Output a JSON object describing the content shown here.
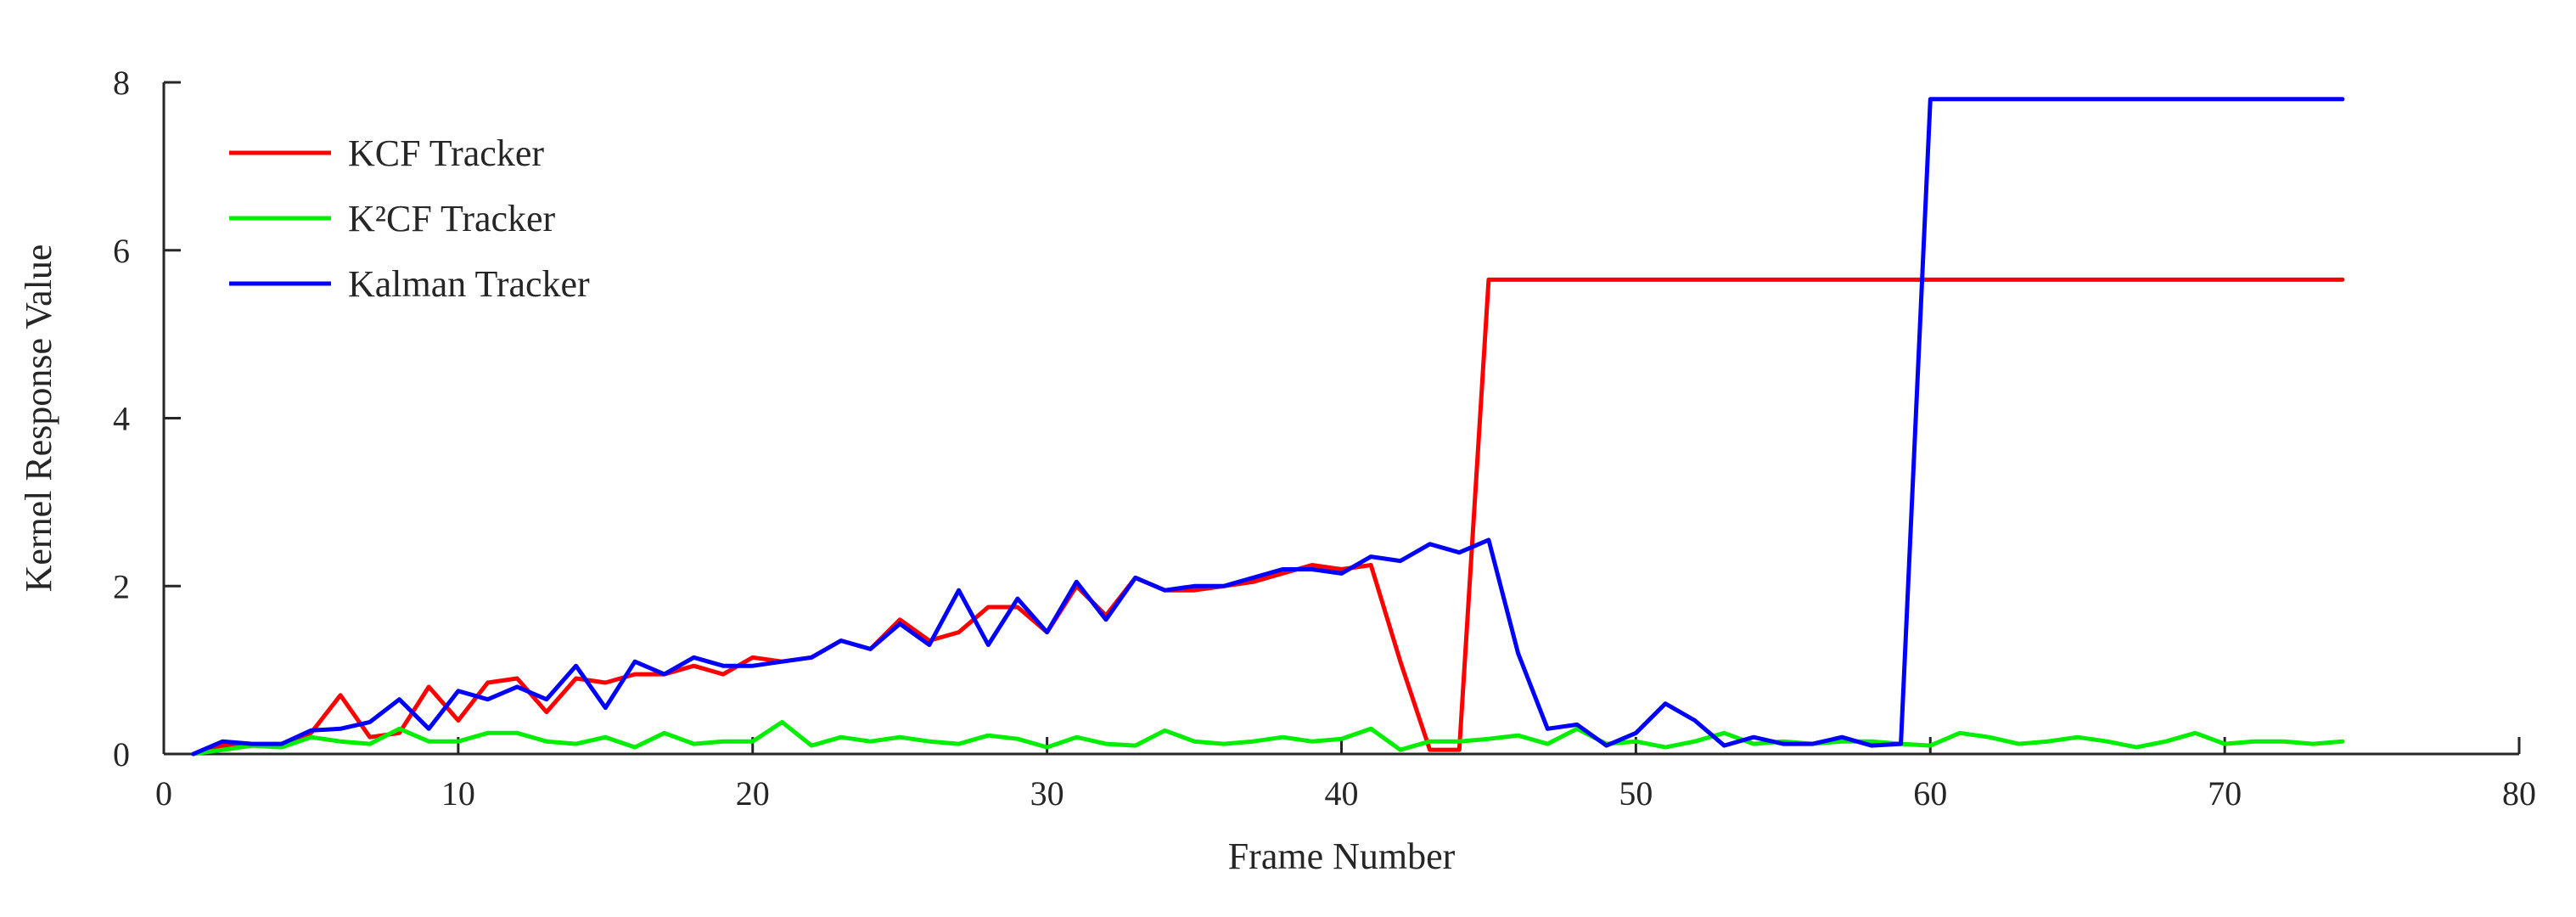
{
  "chart_data": {
    "type": "line",
    "title": "",
    "xlabel": "Frame Number",
    "ylabel": "Kernel Response Value",
    "xlim": [
      0,
      80
    ],
    "ylim": [
      0,
      8
    ],
    "xticks": [
      0,
      10,
      20,
      30,
      40,
      50,
      60,
      70,
      80
    ],
    "yticks": [
      0,
      2,
      4,
      6,
      8
    ],
    "grid": false,
    "legend_position": "top-left",
    "series": [
      {
        "name": "KCF Tracker",
        "color": "#ff0000",
        "x": [
          1,
          2,
          3,
          4,
          5,
          6,
          7,
          8,
          9,
          10,
          11,
          12,
          13,
          14,
          15,
          16,
          17,
          18,
          19,
          20,
          21,
          22,
          23,
          24,
          25,
          26,
          27,
          28,
          29,
          30,
          31,
          32,
          33,
          34,
          35,
          36,
          37,
          38,
          39,
          40,
          41,
          42,
          43,
          44,
          45,
          46,
          47,
          48,
          49,
          50,
          51,
          52,
          53,
          54,
          55,
          56,
          57,
          58,
          59,
          60,
          61,
          62,
          63,
          64,
          65,
          66,
          67,
          68,
          69,
          70,
          71,
          72,
          73,
          74
        ],
        "y": [
          0,
          0.1,
          0.1,
          0.1,
          0.25,
          0.7,
          0.2,
          0.25,
          0.8,
          0.4,
          0.85,
          0.9,
          0.5,
          0.9,
          0.85,
          0.95,
          0.95,
          1.05,
          0.95,
          1.15,
          1.1,
          1.15,
          1.35,
          1.25,
          1.6,
          1.35,
          1.45,
          1.75,
          1.75,
          1.45,
          2.0,
          1.65,
          2.1,
          1.95,
          1.95,
          2.0,
          2.05,
          2.15,
          2.25,
          2.2,
          2.25,
          1.1,
          0.05,
          0.05,
          5.65,
          5.65,
          5.65,
          5.65,
          5.65,
          5.65,
          5.65,
          5.65,
          5.65,
          5.65,
          5.65,
          5.65,
          5.65,
          5.65,
          5.65,
          5.65,
          5.65,
          5.65,
          5.65,
          5.65,
          5.65,
          5.65,
          5.65,
          5.65,
          5.65,
          5.65,
          5.65,
          5.65,
          5.65,
          5.65
        ]
      },
      {
        "name": "K²CF Tracker",
        "color": "#00ee00",
        "x": [
          1,
          2,
          3,
          4,
          5,
          6,
          7,
          8,
          9,
          10,
          11,
          12,
          13,
          14,
          15,
          16,
          17,
          18,
          19,
          20,
          21,
          22,
          23,
          24,
          25,
          26,
          27,
          28,
          29,
          30,
          31,
          32,
          33,
          34,
          35,
          36,
          37,
          38,
          39,
          40,
          41,
          42,
          43,
          44,
          45,
          46,
          47,
          48,
          49,
          50,
          51,
          52,
          53,
          54,
          55,
          56,
          57,
          58,
          59,
          60,
          61,
          62,
          63,
          64,
          65,
          66,
          67,
          68,
          69,
          70,
          71,
          72,
          73,
          74
        ],
        "y": [
          0,
          0.05,
          0.1,
          0.08,
          0.2,
          0.15,
          0.12,
          0.3,
          0.15,
          0.15,
          0.25,
          0.25,
          0.15,
          0.12,
          0.2,
          0.08,
          0.25,
          0.12,
          0.15,
          0.15,
          0.38,
          0.1,
          0.2,
          0.15,
          0.2,
          0.15,
          0.12,
          0.22,
          0.18,
          0.08,
          0.2,
          0.12,
          0.1,
          0.28,
          0.15,
          0.12,
          0.15,
          0.2,
          0.15,
          0.18,
          0.3,
          0.05,
          0.15,
          0.15,
          0.18,
          0.22,
          0.12,
          0.3,
          0.12,
          0.15,
          0.08,
          0.15,
          0.25,
          0.12,
          0.15,
          0.12,
          0.15,
          0.15,
          0.12,
          0.1,
          0.25,
          0.2,
          0.12,
          0.15,
          0.2,
          0.15,
          0.08,
          0.15,
          0.25,
          0.12,
          0.15,
          0.15,
          0.12,
          0.15
        ]
      },
      {
        "name": "Kalman Tracker",
        "color": "#0000ff",
        "x": [
          1,
          2,
          3,
          4,
          5,
          6,
          7,
          8,
          9,
          10,
          11,
          12,
          13,
          14,
          15,
          16,
          17,
          18,
          19,
          20,
          21,
          22,
          23,
          24,
          25,
          26,
          27,
          28,
          29,
          30,
          31,
          32,
          33,
          34,
          35,
          36,
          37,
          38,
          39,
          40,
          41,
          42,
          43,
          44,
          45,
          46,
          47,
          48,
          49,
          50,
          51,
          52,
          53,
          54,
          55,
          56,
          57,
          58,
          59,
          60,
          61,
          62,
          63,
          64,
          65,
          66,
          67,
          68,
          69,
          70,
          71,
          72,
          73,
          74
        ],
        "y": [
          0,
          0.15,
          0.12,
          0.12,
          0.28,
          0.3,
          0.38,
          0.65,
          0.3,
          0.75,
          0.65,
          0.8,
          0.65,
          1.05,
          0.55,
          1.1,
          0.95,
          1.15,
          1.05,
          1.05,
          1.1,
          1.15,
          1.35,
          1.25,
          1.55,
          1.3,
          1.95,
          1.3,
          1.85,
          1.45,
          2.05,
          1.6,
          2.1,
          1.95,
          2.0,
          2.0,
          2.1,
          2.2,
          2.2,
          2.15,
          2.35,
          2.3,
          2.5,
          2.4,
          2.55,
          1.2,
          0.3,
          0.35,
          0.1,
          0.25,
          0.6,
          0.4,
          0.1,
          0.2,
          0.12,
          0.12,
          0.2,
          0.1,
          0.12,
          7.8,
          7.8,
          7.8,
          7.8,
          7.8,
          7.8,
          7.8,
          7.8,
          7.8,
          7.8,
          7.8,
          7.8,
          7.8,
          7.8,
          7.8
        ]
      }
    ]
  }
}
